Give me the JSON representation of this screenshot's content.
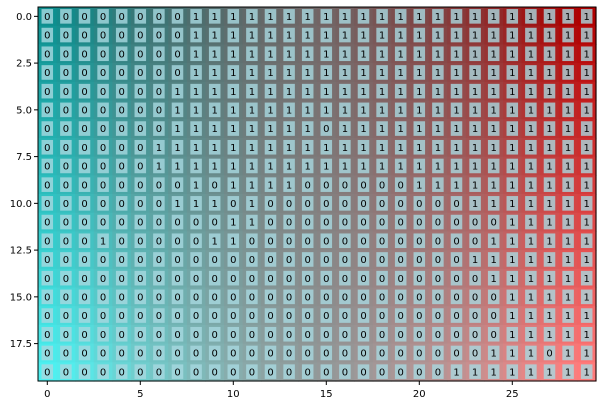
{
  "chart_data": {
    "type": "heatmap",
    "title": "",
    "xlabel": "",
    "ylabel": "",
    "rows": 20,
    "cols": 30,
    "xlim": [
      -0.5,
      29.5
    ],
    "ylim": [
      19.5,
      -0.5
    ],
    "x_ticks": [
      0,
      5,
      10,
      15,
      20,
      25
    ],
    "x_tick_labels": [
      "0",
      "5",
      "10",
      "15",
      "20",
      "25"
    ],
    "y_ticks": [
      0,
      2.5,
      5,
      7.5,
      10,
      12.5,
      15,
      17.5
    ],
    "y_tick_labels": [
      "0.0",
      "2.5",
      "5.0",
      "7.5",
      "10.0",
      "12.5",
      "15.0",
      "17.5"
    ],
    "grid": false,
    "colormap": {
      "top_left": "#0e8f8f",
      "bottom_left": "#4ef0f0",
      "top_right": "#b00000",
      "bottom_right": "#ff7a7a",
      "center": "#808080"
    },
    "label_box_color": "#a8d8e0",
    "values": [
      "000000001111111111111111111111",
      "000000001111111111111111111111",
      "000000001111111111111111111111",
      "000000001111111111111111111111",
      "000000011111111111111111111111",
      "000000011111111111111111111111",
      "000000011111111011111111111111",
      "000000111111111111111111111111",
      "000000111111111111111111111111",
      "000000001011110000001111111111",
      "000000011101000000000001111111",
      "000000000011000000000000011111",
      "000100000110000000000000111111",
      "000000000000000000000001111111",
      "000000000000000000000000111111",
      "000000000000000000000000011111",
      "000000000000000000000000011111",
      "000000000000000000000000011111",
      "000000000000000000000000111011",
      "000000000000000000000011111111"
    ]
  }
}
